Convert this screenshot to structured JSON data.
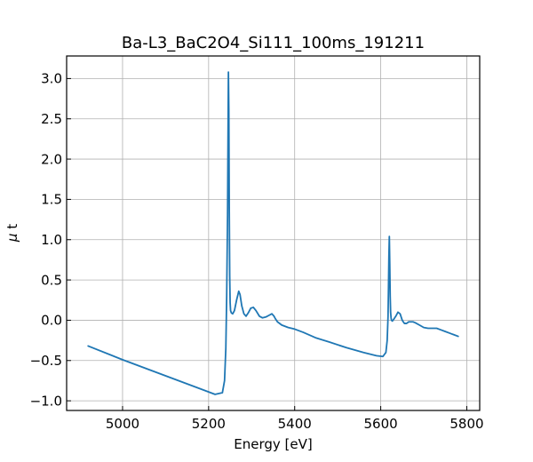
{
  "chart_data": {
    "type": "line",
    "title": "Ba-L3_BaC2O4_Si111_100ms_191211",
    "xlabel": "Energy [eV]",
    "ylabel_symbol": "μ",
    "ylabel_text": " t",
    "xlim": [
      4870,
      5830
    ],
    "ylim": [
      -1.12,
      3.28
    ],
    "xticks": [
      5000,
      5200,
      5400,
      5600,
      5800
    ],
    "yticks": [
      -1.0,
      -0.5,
      0.0,
      0.5,
      1.0,
      1.5,
      2.0,
      2.5,
      3.0
    ],
    "xtick_labels": [
      "5000",
      "5200",
      "5400",
      "5600",
      "5800"
    ],
    "ytick_labels": [
      "−1.0",
      "−0.5",
      "0.0",
      "0.5",
      "1.0",
      "1.5",
      "2.0",
      "2.5",
      "3.0"
    ],
    "grid": true,
    "series": [
      {
        "color": "#1f77b4",
        "x": [
          4920,
          5000,
          5100,
          5180,
          5215,
          5232,
          5237,
          5240,
          5242,
          5244,
          5245,
          5246,
          5247,
          5248,
          5249,
          5250,
          5251,
          5253,
          5256,
          5260,
          5265,
          5270,
          5273,
          5277,
          5282,
          5287,
          5292,
          5298,
          5304,
          5310,
          5318,
          5325,
          5333,
          5340,
          5347,
          5352,
          5355,
          5360,
          5370,
          5385,
          5400,
          5420,
          5450,
          5480,
          5520,
          5560,
          5590,
          5605,
          5612,
          5615,
          5617,
          5618,
          5619,
          5620,
          5621,
          5622,
          5623,
          5624,
          5625,
          5627,
          5630,
          5635,
          5640,
          5645,
          5650,
          5655,
          5660,
          5665,
          5670,
          5675,
          5680,
          5690,
          5700,
          5710,
          5720,
          5730,
          5740,
          5750,
          5760,
          5770,
          5780
        ],
        "y": [
          -0.32,
          -0.49,
          -0.69,
          -0.85,
          -0.92,
          -0.9,
          -0.75,
          -0.35,
          0.3,
          1.3,
          2.2,
          3.08,
          2.6,
          1.4,
          0.55,
          0.22,
          0.12,
          0.09,
          0.08,
          0.12,
          0.25,
          0.36,
          0.32,
          0.18,
          0.08,
          0.05,
          0.09,
          0.15,
          0.16,
          0.12,
          0.05,
          0.03,
          0.04,
          0.06,
          0.08,
          0.05,
          0.02,
          -0.02,
          -0.06,
          -0.09,
          -0.11,
          -0.15,
          -0.22,
          -0.27,
          -0.34,
          -0.4,
          -0.44,
          -0.45,
          -0.4,
          -0.25,
          0.05,
          0.4,
          0.8,
          1.04,
          0.7,
          0.3,
          0.1,
          0.03,
          0.0,
          -0.01,
          0.01,
          0.05,
          0.1,
          0.08,
          0.0,
          -0.04,
          -0.04,
          -0.02,
          -0.02,
          -0.02,
          -0.03,
          -0.06,
          -0.09,
          -0.1,
          -0.1,
          -0.1,
          -0.12,
          -0.14,
          -0.16,
          -0.18,
          -0.2
        ]
      }
    ]
  }
}
